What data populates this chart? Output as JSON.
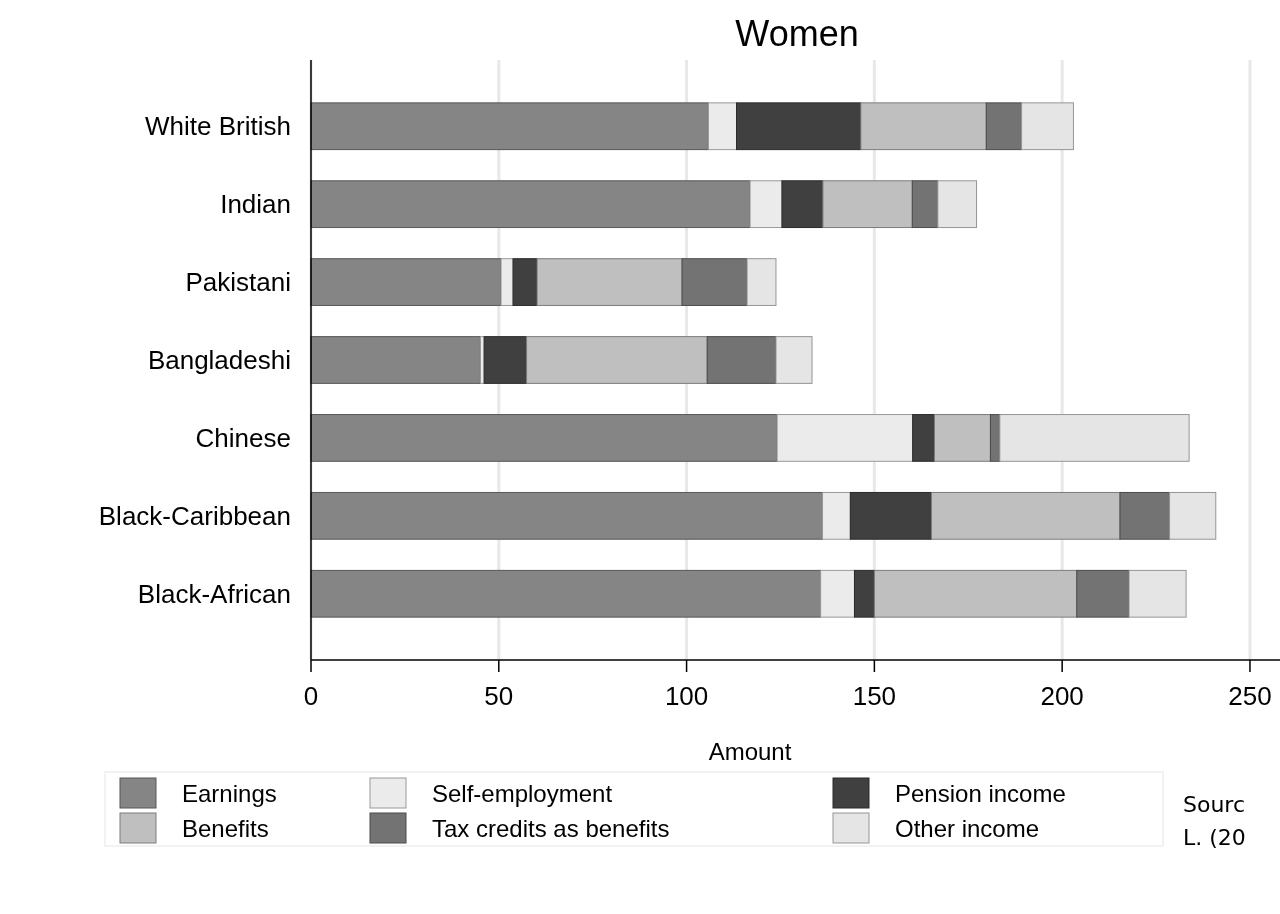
{
  "chart_data": {
    "type": "bar",
    "title": "Women",
    "xlabel": "Amount",
    "orientation": "horizontal",
    "stacked": true,
    "categories": [
      "White British",
      "Indian",
      "Pakistani",
      "Bangladeshi",
      "Chinese",
      "Black-Caribbean",
      "Black-African"
    ],
    "series": [
      {
        "name": "Earnings",
        "color": "#858585",
        "values": [
          105.8,
          116.9,
          50.6,
          45.1,
          124.1,
          136.2,
          135.7
        ]
      },
      {
        "name": "Self-employment",
        "color": "#ebebeb",
        "values": [
          7.5,
          8.5,
          3.2,
          1.0,
          36.1,
          7.4,
          9.0
        ]
      },
      {
        "name": "Pension income",
        "color": "#404040",
        "values": [
          33.1,
          10.9,
          6.4,
          11.3,
          5.8,
          21.6,
          5.3
        ]
      },
      {
        "name": "Benefits",
        "color": "#bfbfbf",
        "values": [
          33.4,
          23.8,
          38.6,
          48.1,
          14.9,
          50.2,
          53.9
        ]
      },
      {
        "name": "Tax credits as benefits",
        "color": "#737373",
        "values": [
          9.4,
          6.8,
          17.3,
          18.3,
          2.5,
          13.2,
          13.9
        ]
      },
      {
        "name": "Other income",
        "color": "#e5e5e5",
        "values": [
          13.8,
          10.3,
          7.7,
          9.6,
          50.4,
          12.3,
          15.2
        ]
      }
    ],
    "xlim": [
      0,
      258
    ],
    "xticks": [
      0,
      50,
      100,
      150,
      200,
      250
    ],
    "grid": "x",
    "legend": "bottom",
    "annotations": [
      "Sourc",
      "L. (20"
    ]
  }
}
